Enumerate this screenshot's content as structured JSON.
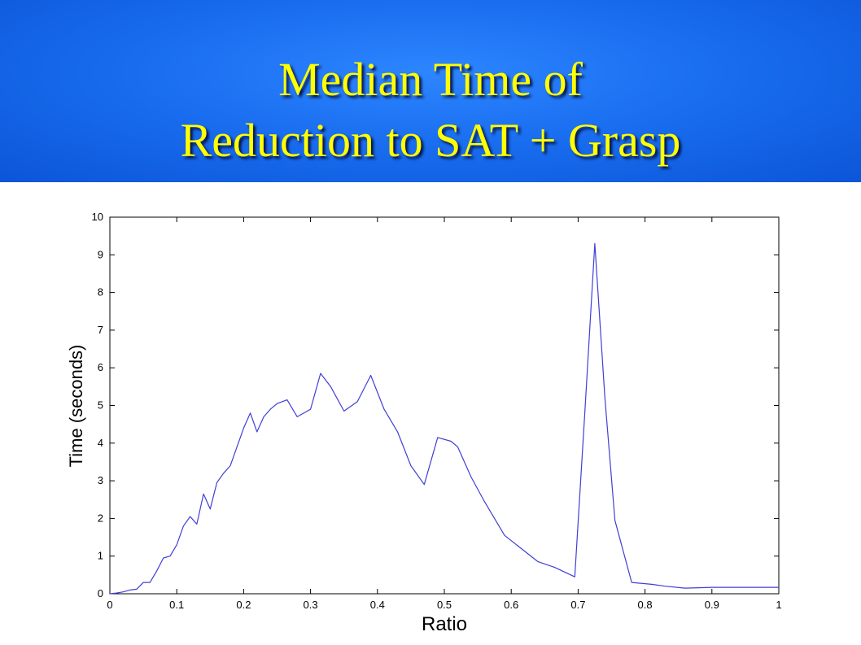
{
  "slide": {
    "title_line1": "Median Time of",
    "title_line2": "Reduction to SAT + Grasp"
  },
  "colors": {
    "banner": "#1a6ef0",
    "title": "#ffff00",
    "line": "#3f3fd6"
  },
  "chart_data": {
    "type": "line",
    "title": "",
    "xlabel": "Ratio",
    "ylabel": "Time (seconds)",
    "xlim": [
      0,
      1
    ],
    "ylim": [
      0,
      10
    ],
    "xticks": [
      0,
      0.1,
      0.2,
      0.3,
      0.4,
      0.5,
      0.6,
      0.7,
      0.8,
      0.9,
      1
    ],
    "xtick_labels": [
      "0",
      "0.1",
      "0.2",
      "0.3",
      "0.4",
      "0.5",
      "0.6",
      "0.7",
      "0.8",
      "0.9",
      "1"
    ],
    "yticks": [
      0,
      1,
      2,
      3,
      4,
      5,
      6,
      7,
      8,
      9,
      10
    ],
    "ytick_labels": [
      "0",
      "1",
      "2",
      "3",
      "4",
      "5",
      "6",
      "7",
      "8",
      "9",
      "10"
    ],
    "grid": false,
    "series": [
      {
        "x": [
          0,
          0.01,
          0.02,
          0.03,
          0.04,
          0.05,
          0.06,
          0.07,
          0.08,
          0.09,
          0.1,
          0.11,
          0.12,
          0.13,
          0.14,
          0.15,
          0.16,
          0.17,
          0.18,
          0.19,
          0.2,
          0.21,
          0.22,
          0.23,
          0.24,
          0.25,
          0.265,
          0.28,
          0.3,
          0.315,
          0.33,
          0.35,
          0.37,
          0.39,
          0.41,
          0.43,
          0.45,
          0.47,
          0.49,
          0.51,
          0.52,
          0.54,
          0.56,
          0.59,
          0.615,
          0.64,
          0.665,
          0.695,
          0.71,
          0.725,
          0.74,
          0.755,
          0.78,
          0.81,
          0.83,
          0.86,
          0.9,
          1.0
        ],
        "y": [
          0,
          0.02,
          0.05,
          0.1,
          0.12,
          0.3,
          0.3,
          0.6,
          0.95,
          1.0,
          1.3,
          1.8,
          2.05,
          1.85,
          2.65,
          2.25,
          2.95,
          3.2,
          3.4,
          3.9,
          4.4,
          4.8,
          4.3,
          4.7,
          4.9,
          5.05,
          5.15,
          4.7,
          4.9,
          5.85,
          5.5,
          4.85,
          5.1,
          5.8,
          4.9,
          4.3,
          3.4,
          2.9,
          4.15,
          4.05,
          3.9,
          3.1,
          2.45,
          1.55,
          1.2,
          0.85,
          0.7,
          0.45,
          4.8,
          9.3,
          5.2,
          1.95,
          0.3,
          0.25,
          0.2,
          0.15,
          0.17,
          0.17
        ]
      }
    ]
  }
}
